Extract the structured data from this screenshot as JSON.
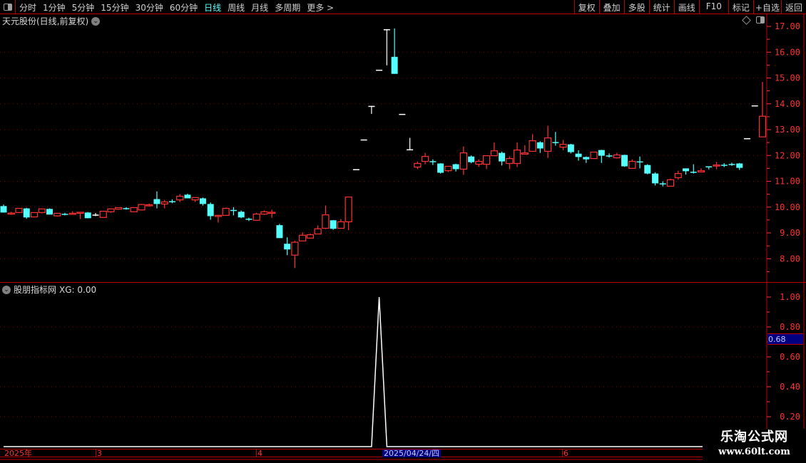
{
  "toolbar": {
    "periods": [
      "分时",
      "1分钟",
      "5分钟",
      "15分钟",
      "30分钟",
      "60分钟",
      "日线",
      "周线",
      "月线",
      "多周期",
      "更多 >"
    ],
    "active_period": "日线",
    "right_buttons": [
      "复权",
      "叠加",
      "多股",
      "统计",
      "画线",
      "F10",
      "标记",
      "+自选",
      "返回"
    ]
  },
  "main_panel": {
    "title": "天元股份(日线,前复权)"
  },
  "sub_panel": {
    "title": "股朋指标网",
    "value_label": "XG: 0.00"
  },
  "cursor": {
    "date": "2025/04/24/四",
    "value": "0.68"
  },
  "date_axis": {
    "labels": [
      "2025年",
      "3",
      "4",
      "6"
    ]
  },
  "watermark": {
    "line1": "乐淘公式网",
    "line2": "www.60lt.com"
  },
  "colors": {
    "up": "#ff3232",
    "down": "#54ffff",
    "flat": "#ffffff",
    "axis": "#ff3232",
    "grid": "#8b0000",
    "indicator": "#ffffff"
  },
  "chart_data": [
    {
      "type": "candlestick",
      "yticks": [
        "17.00",
        "16.00",
        "15.00",
        "14.00",
        "13.00",
        "12.00",
        "11.00",
        "10.00",
        "9.00",
        "8.00"
      ],
      "ylim": [
        7.5,
        17.45
      ],
      "grid": true,
      "ohlc": [
        [
          10.04,
          10.1,
          9.79,
          9.79
        ],
        [
          9.76,
          9.82,
          9.7,
          9.77
        ],
        [
          9.79,
          9.96,
          9.78,
          9.95
        ],
        [
          9.95,
          9.97,
          9.55,
          9.6
        ],
        [
          9.62,
          9.79,
          9.6,
          9.79
        ],
        [
          9.79,
          9.93,
          9.76,
          9.93
        ],
        [
          9.93,
          9.95,
          9.71,
          9.71
        ],
        [
          9.66,
          9.76,
          9.63,
          9.76
        ],
        [
          9.74,
          9.78,
          9.68,
          9.73
        ],
        [
          9.74,
          9.84,
          9.72,
          9.76
        ],
        [
          9.77,
          9.8,
          9.54,
          9.8
        ],
        [
          9.79,
          9.81,
          9.57,
          9.57
        ],
        [
          9.71,
          9.77,
          9.65,
          9.71
        ],
        [
          9.6,
          9.84,
          9.6,
          9.84
        ],
        [
          9.82,
          9.95,
          9.78,
          9.93
        ],
        [
          9.92,
          9.99,
          9.9,
          9.98
        ],
        [
          9.96,
          10.0,
          9.9,
          9.95
        ],
        [
          9.82,
          9.99,
          9.8,
          9.98
        ],
        [
          9.89,
          10.12,
          9.87,
          10.1
        ],
        [
          10.08,
          10.14,
          10.02,
          10.09
        ],
        [
          10.31,
          10.61,
          9.95,
          10.12
        ],
        [
          10.12,
          10.28,
          9.95,
          10.2
        ],
        [
          10.23,
          10.3,
          10.15,
          10.22
        ],
        [
          10.28,
          10.5,
          10.2,
          10.42
        ],
        [
          10.48,
          10.52,
          10.34,
          10.34
        ],
        [
          10.28,
          10.37,
          10.2,
          10.37
        ],
        [
          10.34,
          10.37,
          10.06,
          10.12
        ],
        [
          10.12,
          10.18,
          9.51,
          9.65
        ],
        [
          9.66,
          9.7,
          9.4,
          9.68
        ],
        [
          9.68,
          9.98,
          9.68,
          9.95
        ],
        [
          9.89,
          10.0,
          9.68,
          9.85
        ],
        [
          9.82,
          9.87,
          9.57,
          9.6
        ],
        [
          9.55,
          9.59,
          9.46,
          9.54
        ],
        [
          9.49,
          9.78,
          9.49,
          9.73
        ],
        [
          9.73,
          9.87,
          9.7,
          9.82
        ],
        [
          9.78,
          9.9,
          9.59,
          9.8
        ],
        [
          9.3,
          9.35,
          8.8,
          8.8
        ],
        [
          8.58,
          8.83,
          8.14,
          8.36
        ],
        [
          8.14,
          8.7,
          7.64,
          8.64
        ],
        [
          8.69,
          9.02,
          8.69,
          8.91
        ],
        [
          8.8,
          8.98,
          8.8,
          8.93
        ],
        [
          8.96,
          9.29,
          8.96,
          9.16
        ],
        [
          9.18,
          10.06,
          9.15,
          9.7
        ],
        [
          9.49,
          9.5,
          9.12,
          9.16
        ],
        [
          9.18,
          9.54,
          9.18,
          9.43
        ],
        [
          9.43,
          10.4,
          9.11,
          10.39
        ],
        [
          11.47,
          11.47,
          11.47,
          11.47
        ],
        [
          12.62,
          12.62,
          12.62,
          12.62
        ],
        [
          13.92,
          13.92,
          13.61,
          13.92
        ],
        [
          15.32,
          15.32,
          15.32,
          15.32
        ],
        [
          16.89,
          16.89,
          15.49,
          16.89
        ],
        [
          15.82,
          16.92,
          15.16,
          15.16
        ],
        [
          13.61,
          13.61,
          13.61,
          13.61
        ],
        [
          12.24,
          12.68,
          12.24,
          12.24
        ],
        [
          11.55,
          11.77,
          11.47,
          11.69
        ],
        [
          11.77,
          12.1,
          11.66,
          11.96
        ],
        [
          11.78,
          11.85,
          11.63,
          11.75
        ],
        [
          11.69,
          11.7,
          11.3,
          11.33
        ],
        [
          11.41,
          11.58,
          11.36,
          11.58
        ],
        [
          11.66,
          11.68,
          11.38,
          11.47
        ],
        [
          11.47,
          12.35,
          11.25,
          12.1
        ],
        [
          11.96,
          12.0,
          11.7,
          11.74
        ],
        [
          11.66,
          11.85,
          11.56,
          11.77
        ],
        [
          11.66,
          12.0,
          11.47,
          11.99
        ],
        [
          11.99,
          12.5,
          11.99,
          12.18
        ],
        [
          12.1,
          12.15,
          11.61,
          11.77
        ],
        [
          11.69,
          11.96,
          11.47,
          11.88
        ],
        [
          11.69,
          12.5,
          11.55,
          12.21
        ],
        [
          12.05,
          12.4,
          12.04,
          12.1
        ],
        [
          12.16,
          12.82,
          12.16,
          12.57
        ],
        [
          12.51,
          12.55,
          12.1,
          12.27
        ],
        [
          12.16,
          13.15,
          11.9,
          12.68
        ],
        [
          12.52,
          12.91,
          12.38,
          12.5
        ],
        [
          12.32,
          12.6,
          12.2,
          12.43
        ],
        [
          12.43,
          12.45,
          12.08,
          12.13
        ],
        [
          12.07,
          12.2,
          11.8,
          11.94
        ],
        [
          11.94,
          11.96,
          11.71,
          11.85
        ],
        [
          11.88,
          12.13,
          11.88,
          12.13
        ],
        [
          12.21,
          12.22,
          11.71,
          11.99
        ],
        [
          12.0,
          12.08,
          11.92,
          11.99
        ],
        [
          11.91,
          12.1,
          11.88,
          12.02
        ],
        [
          12.02,
          12.03,
          11.56,
          11.58
        ],
        [
          11.5,
          11.85,
          11.5,
          11.77
        ],
        [
          11.77,
          11.96,
          11.5,
          11.74
        ],
        [
          11.63,
          11.66,
          11.27,
          11.3
        ],
        [
          11.3,
          11.35,
          10.84,
          10.92
        ],
        [
          10.92,
          11.0,
          10.8,
          10.89
        ],
        [
          10.81,
          11.1,
          10.79,
          11.06
        ],
        [
          11.14,
          11.41,
          11.06,
          11.3
        ],
        [
          11.5,
          11.5,
          11.26,
          11.39
        ],
        [
          11.37,
          11.66,
          11.3,
          11.36
        ],
        [
          11.36,
          11.5,
          11.36,
          11.41
        ],
        [
          11.58,
          11.58,
          11.46,
          11.55
        ],
        [
          11.61,
          11.75,
          11.47,
          11.63
        ],
        [
          11.64,
          11.7,
          11.55,
          11.63
        ],
        [
          11.67,
          11.72,
          11.6,
          11.66
        ],
        [
          11.69,
          11.71,
          11.44,
          11.52
        ],
        [
          12.67,
          12.67,
          12.67,
          12.67
        ],
        [
          13.94,
          13.94,
          13.94,
          13.94
        ],
        [
          12.72,
          14.85,
          12.72,
          13.52
        ]
      ]
    },
    {
      "type": "line",
      "name": "XG",
      "yticks": [
        "1.00",
        "0.80",
        "0.60",
        "0.40",
        "0.20"
      ],
      "ylim": [
        0,
        1.05
      ],
      "grid": true,
      "spike_index": 49,
      "values_note_free": true,
      "baseline": 0,
      "peak": 1.0
    }
  ]
}
